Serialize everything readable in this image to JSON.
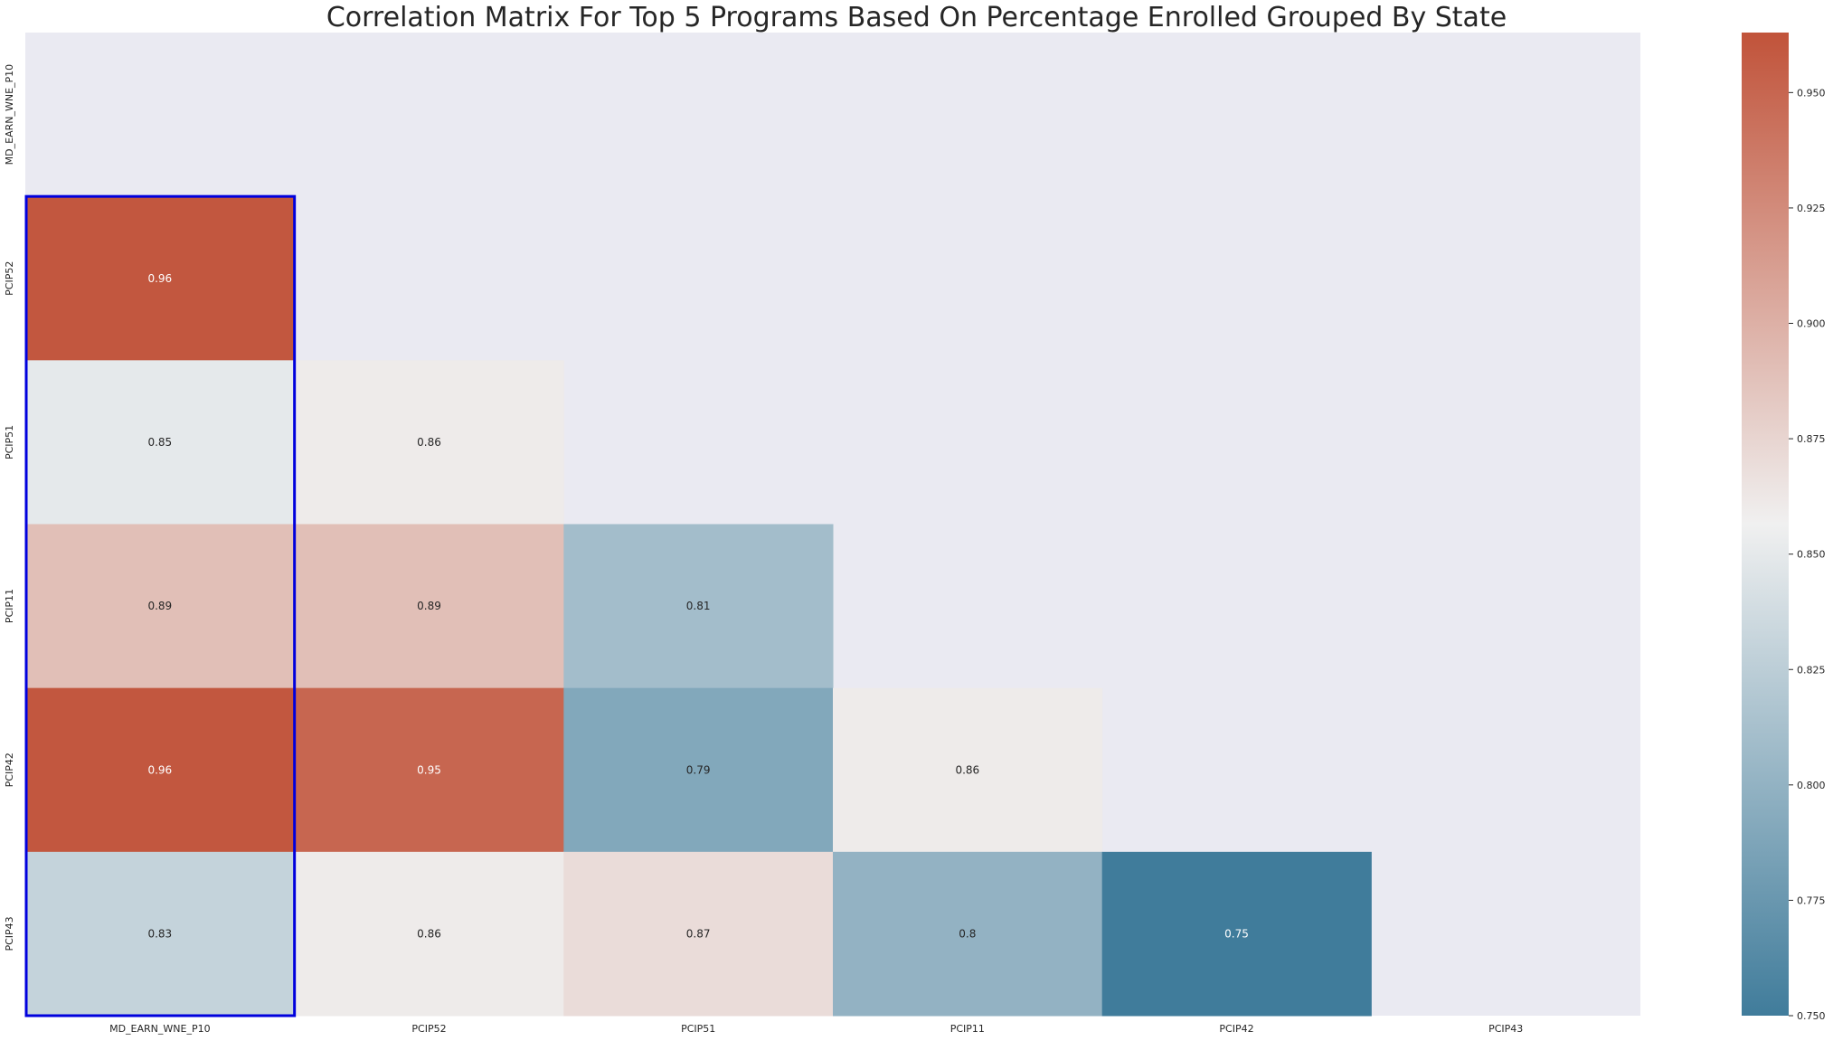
{
  "chart_data": {
    "type": "heatmap",
    "title": "Correlation Matrix For Top 5 Programs Based On Percentage Enrolled Grouped By State",
    "row_labels": [
      "MD_EARN_WNE_P10",
      "PCIP52",
      "PCIP51",
      "PCIP11",
      "PCIP42",
      "PCIP43"
    ],
    "col_labels": [
      "MD_EARN_WNE_P10",
      "PCIP52",
      "PCIP51",
      "PCIP11",
      "PCIP42",
      "PCIP43"
    ],
    "mask": "upper triangle including diagonal",
    "cells": [
      {
        "row": "PCIP52",
        "col": "MD_EARN_WNE_P10",
        "value": 0.96,
        "label": "0.96"
      },
      {
        "row": "PCIP51",
        "col": "MD_EARN_WNE_P10",
        "value": 0.85,
        "label": "0.85"
      },
      {
        "row": "PCIP51",
        "col": "PCIP52",
        "value": 0.86,
        "label": "0.86"
      },
      {
        "row": "PCIP11",
        "col": "MD_EARN_WNE_P10",
        "value": 0.89,
        "label": "0.89"
      },
      {
        "row": "PCIP11",
        "col": "PCIP52",
        "value": 0.89,
        "label": "0.89"
      },
      {
        "row": "PCIP11",
        "col": "PCIP51",
        "value": 0.81,
        "label": "0.81"
      },
      {
        "row": "PCIP42",
        "col": "MD_EARN_WNE_P10",
        "value": 0.96,
        "label": "0.96"
      },
      {
        "row": "PCIP42",
        "col": "PCIP52",
        "value": 0.95,
        "label": "0.95"
      },
      {
        "row": "PCIP42",
        "col": "PCIP51",
        "value": 0.79,
        "label": "0.79"
      },
      {
        "row": "PCIP42",
        "col": "PCIP11",
        "value": 0.86,
        "label": "0.86"
      },
      {
        "row": "PCIP43",
        "col": "MD_EARN_WNE_P10",
        "value": 0.83,
        "label": "0.83"
      },
      {
        "row": "PCIP43",
        "col": "PCIP52",
        "value": 0.86,
        "label": "0.86"
      },
      {
        "row": "PCIP43",
        "col": "PCIP51",
        "value": 0.87,
        "label": "0.87"
      },
      {
        "row": "PCIP43",
        "col": "PCIP11",
        "value": 0.8,
        "label": "0.8"
      },
      {
        "row": "PCIP43",
        "col": "PCIP42",
        "value": 0.75,
        "label": "0.75"
      }
    ],
    "highlighted_column": "MD_EARN_WNE_P10",
    "highlight_color": "#0000dd",
    "colorbar": {
      "vmin": 0.75,
      "vmax": 0.963,
      "ticks": [
        "0.750",
        "0.775",
        "0.800",
        "0.825",
        "0.850",
        "0.875",
        "0.900",
        "0.925",
        "0.950"
      ],
      "colormap": "diverging blue-white-red",
      "color_low": "#407c9b",
      "color_mid": "#f0f0f0",
      "color_high": "#c1533a"
    },
    "background_color": "#eaeaf2",
    "grid": false
  }
}
